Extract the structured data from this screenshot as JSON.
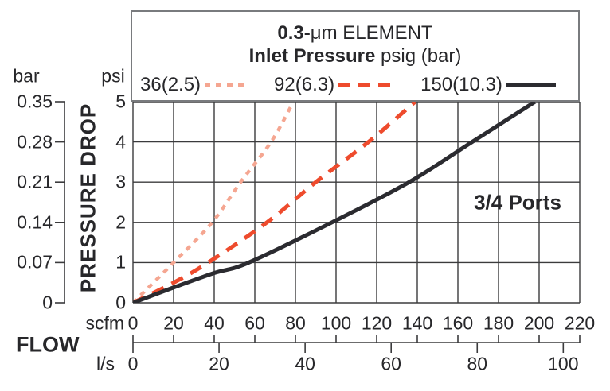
{
  "figure": {
    "legend": {
      "title_bold": "0.3-",
      "title_rest": "μm ELEMENT",
      "subtitle_bold": "Inlet Pressure",
      "subtitle_rest": " psig (bar)",
      "entries": [
        {
          "label": "36(2.5)",
          "style": "dotted",
          "color": "#f5a691"
        },
        {
          "label": "92(6.3)",
          "style": "dashed",
          "color": "#ee4b2d"
        },
        {
          "label": "150(10.3)",
          "style": "solid",
          "color": "#2b2b30"
        }
      ]
    },
    "annotation": "3/4 Ports",
    "y_axis": {
      "unit_left": "bar",
      "unit_right": "psi",
      "title": "PRESSURE DROP",
      "bar_ticks": [
        "0.35",
        "0.28",
        "0.21",
        "0.14",
        "0.07",
        "0"
      ],
      "psi_ticks": [
        "5",
        "4",
        "3",
        "2",
        "1",
        "0"
      ]
    },
    "x_axis": {
      "title": "FLOW",
      "unit_scfm": "scfm",
      "unit_ls": "l/s",
      "scfm_ticks": [
        "0",
        "20",
        "40",
        "60",
        "80",
        "100",
        "120",
        "140",
        "160",
        "180",
        "200",
        "220"
      ],
      "ls_ticks": [
        "0",
        "20",
        "40",
        "60",
        "80",
        "100"
      ]
    }
  },
  "chart_data": {
    "type": "line",
    "title": "0.3-μm ELEMENT",
    "subtitle": "Inlet Pressure psig (bar)",
    "xlabel": "FLOW (scfm)",
    "x2label": "FLOW (l/s)",
    "ylabel": "PRESSURE DROP (psi)",
    "y2label": "PRESSURE DROP (bar)",
    "xlim": [
      0,
      220
    ],
    "ylim": [
      0,
      5
    ],
    "x2lim": [
      0,
      103.8
    ],
    "y2lim": [
      0,
      0.35
    ],
    "grid": true,
    "legend_position": "top",
    "annotation": "3/4 Ports",
    "series": [
      {
        "name": "36(2.5)",
        "inlet_psig": 36,
        "inlet_bar": 2.5,
        "line_style": "dotted",
        "color": "#f5a691",
        "points_scfm_psi": [
          [
            0,
            0
          ],
          [
            20,
            1.0
          ],
          [
            39,
            2.0
          ],
          [
            53,
            3.0
          ],
          [
            68,
            4.0
          ],
          [
            78,
            4.9
          ]
        ]
      },
      {
        "name": "92(6.3)",
        "inlet_psig": 92,
        "inlet_bar": 6.3,
        "line_style": "dashed",
        "color": "#ee4b2d",
        "points_scfm_psi": [
          [
            0,
            0
          ],
          [
            20,
            0.5
          ],
          [
            37,
            1.0
          ],
          [
            66,
            2.0
          ],
          [
            90,
            3.0
          ],
          [
            116,
            4.0
          ],
          [
            139,
            5.0
          ]
        ]
      },
      {
        "name": "150(10.3)",
        "inlet_psig": 150,
        "inlet_bar": 10.3,
        "line_style": "solid",
        "color": "#2b2b30",
        "points_scfm_psi": [
          [
            0,
            0
          ],
          [
            20,
            0.38
          ],
          [
            40,
            0.74
          ],
          [
            57,
            1.0
          ],
          [
            98,
            2.0
          ],
          [
            136,
            3.0
          ],
          [
            167,
            4.0
          ],
          [
            198,
            5.0
          ]
        ]
      }
    ]
  }
}
